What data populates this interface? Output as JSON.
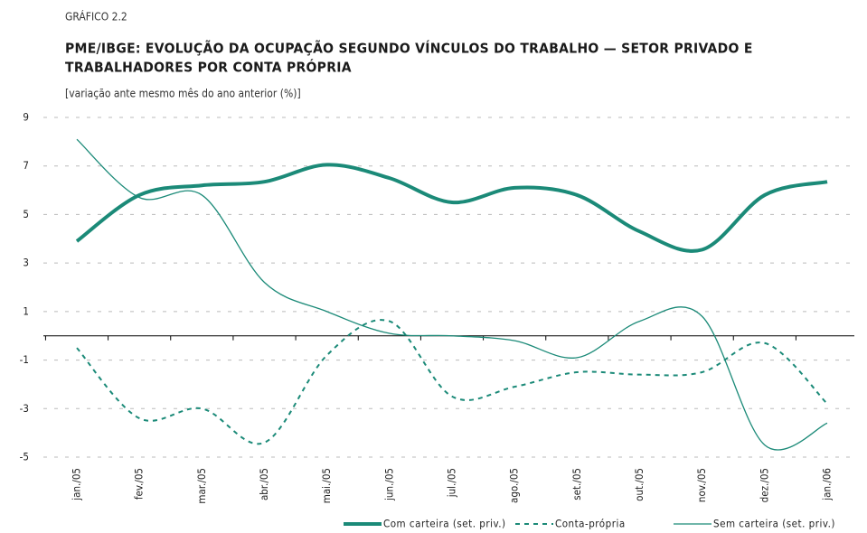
{
  "chart_data": {
    "type": "line",
    "label": "GRÁFICO 2.2",
    "title": [
      "PME/IBGE: EVOLUÇÃO DA OCUPAÇÃO SEGUNDO VÍNCULOS DO TRABALHO — SETOR PRIVADO E",
      "TRABALHADORES POR CONTA PRÓPRIA"
    ],
    "subtitle": "[variação ante mesmo mês do ano anterior (%)]",
    "categories": [
      "jan./05",
      "fev./05",
      "mar./05",
      "abr./05",
      "mai./05",
      "jun./05",
      "jul./05",
      "ago./05",
      "set./05",
      "out./05",
      "nov./05",
      "dez./05",
      "jan./06"
    ],
    "ylim": [
      -5,
      9
    ],
    "yticks": [
      -5,
      -3,
      -1,
      1,
      3,
      5,
      7,
      9
    ],
    "grid": true,
    "series": [
      {
        "name": "Com carteira (set. priv.)",
        "color": "#1b8a78",
        "style": "thick",
        "values": [
          3.9,
          5.8,
          6.2,
          6.35,
          7.05,
          6.5,
          5.5,
          6.1,
          5.8,
          4.3,
          3.55,
          5.8,
          6.35
        ]
      },
      {
        "name": "Conta-própria",
        "color": "#1b8a78",
        "style": "dashed",
        "values": [
          -0.5,
          -3.4,
          -3.0,
          -4.4,
          -0.8,
          0.6,
          -2.5,
          -2.1,
          -1.5,
          -1.6,
          -1.5,
          -0.3,
          -2.8
        ]
      },
      {
        "name": "Sem carteira (set. priv.)",
        "color": "#1b8a78",
        "style": "thin",
        "values": [
          8.1,
          5.7,
          5.8,
          2.2,
          1.0,
          0.1,
          0.0,
          -0.2,
          -0.9,
          0.6,
          0.8,
          -4.5,
          -3.6
        ]
      }
    ]
  }
}
